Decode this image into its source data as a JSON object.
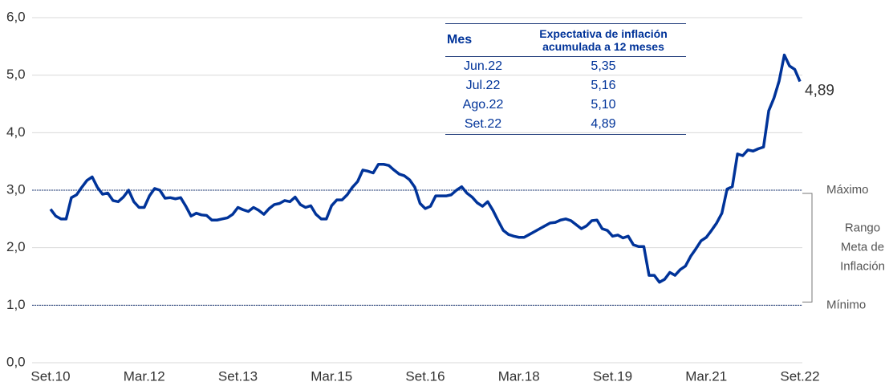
{
  "chart_data": {
    "type": "line",
    "categories": [
      "Set.10",
      null,
      null,
      null,
      null,
      null,
      null,
      null,
      null,
      null,
      null,
      null,
      null,
      null,
      null,
      null,
      null,
      null,
      "Mar.12",
      null,
      null,
      null,
      null,
      null,
      null,
      null,
      null,
      null,
      null,
      null,
      null,
      null,
      null,
      null,
      null,
      null,
      "Set.13",
      null,
      null,
      null,
      null,
      null,
      null,
      null,
      null,
      null,
      null,
      null,
      null,
      null,
      null,
      null,
      null,
      null,
      "Mar.15",
      null,
      null,
      null,
      null,
      null,
      null,
      null,
      null,
      null,
      null,
      null,
      null,
      null,
      null,
      null,
      null,
      null,
      "Set.16",
      null,
      null,
      null,
      null,
      null,
      null,
      null,
      null,
      null,
      null,
      null,
      null,
      null,
      null,
      null,
      null,
      null,
      "Mar.18",
      null,
      null,
      null,
      null,
      null,
      null,
      null,
      null,
      null,
      null,
      null,
      null,
      null,
      null,
      null,
      null,
      null,
      "Set.19",
      null,
      null,
      null,
      null,
      null,
      null,
      null,
      null,
      null,
      null,
      null,
      null,
      null,
      null,
      null,
      null,
      null,
      "Mar.21",
      null,
      null,
      null,
      null,
      null,
      null,
      null,
      null,
      null,
      null,
      null,
      null,
      null,
      null,
      null,
      null,
      null,
      "Set.22"
    ],
    "values": [
      2.67,
      2.55,
      2.5,
      2.5,
      2.87,
      2.92,
      3.05,
      3.17,
      3.23,
      3.05,
      2.93,
      2.95,
      2.82,
      2.8,
      2.88,
      3.0,
      2.8,
      2.7,
      2.7,
      2.9,
      3.03,
      3.0,
      2.86,
      2.87,
      2.85,
      2.87,
      2.72,
      2.55,
      2.6,
      2.57,
      2.56,
      2.48,
      2.48,
      2.5,
      2.52,
      2.58,
      2.7,
      2.66,
      2.63,
      2.7,
      2.65,
      2.58,
      2.68,
      2.75,
      2.77,
      2.82,
      2.8,
      2.88,
      2.75,
      2.7,
      2.73,
      2.58,
      2.5,
      2.5,
      2.73,
      2.83,
      2.83,
      2.92,
      3.05,
      3.15,
      3.35,
      3.33,
      3.3,
      3.45,
      3.45,
      3.43,
      3.35,
      3.28,
      3.25,
      3.18,
      3.05,
      2.77,
      2.68,
      2.72,
      2.9,
      2.9,
      2.9,
      2.92,
      3.0,
      3.06,
      2.95,
      2.88,
      2.78,
      2.72,
      2.8,
      2.65,
      2.47,
      2.3,
      2.23,
      2.2,
      2.18,
      2.18,
      2.23,
      2.28,
      2.33,
      2.38,
      2.43,
      2.44,
      2.48,
      2.5,
      2.47,
      2.4,
      2.33,
      2.38,
      2.47,
      2.48,
      2.33,
      2.3,
      2.2,
      2.22,
      2.17,
      2.2,
      2.05,
      2.02,
      2.02,
      1.52,
      1.52,
      1.4,
      1.45,
      1.57,
      1.52,
      1.62,
      1.68,
      1.85,
      1.98,
      2.12,
      2.18,
      2.3,
      2.43,
      2.6,
      3.02,
      3.06,
      3.63,
      3.6,
      3.7,
      3.68,
      3.72,
      3.75,
      4.38,
      4.6,
      4.9,
      5.35,
      5.16,
      5.1,
      4.89
    ],
    "value_labels": [
      null,
      null,
      null,
      null,
      null,
      null,
      null,
      null,
      null,
      null,
      null,
      null,
      null,
      null,
      null,
      null,
      null,
      null,
      null,
      null,
      null,
      null,
      null,
      null,
      null,
      null,
      null,
      null,
      null,
      null,
      null,
      null,
      null,
      null,
      null,
      null,
      null,
      null,
      null,
      null,
      null,
      null,
      null,
      null,
      null,
      null,
      null,
      null,
      null,
      null,
      null,
      null,
      null,
      null,
      null,
      null,
      null,
      null,
      null,
      null,
      null,
      null,
      null,
      null,
      null,
      null,
      null,
      null,
      null,
      null,
      null,
      null,
      null,
      null,
      null,
      null,
      null,
      null,
      null,
      null,
      null,
      null,
      null,
      null,
      null,
      null,
      null,
      null,
      null,
      null,
      null,
      null,
      null,
      null,
      null,
      null,
      null,
      null,
      null,
      null,
      null,
      null,
      null,
      null,
      null,
      null,
      null,
      null,
      null,
      null,
      null,
      null,
      null,
      null,
      null,
      null,
      null,
      null,
      null,
      null,
      null,
      null,
      null,
      null,
      null,
      null,
      null,
      null,
      null,
      null,
      null,
      null,
      null,
      null,
      null,
      null,
      null,
      null,
      null,
      null,
      null,
      null,
      null,
      null,
      "4,89"
    ],
    "color": "#003399",
    "ylim": [
      0,
      6
    ],
    "yticks": [
      {
        "value": 0,
        "label": "0,0"
      },
      {
        "value": 1,
        "label": "1,0"
      },
      {
        "value": 2,
        "label": "2,0"
      },
      {
        "value": 3,
        "label": "3,0"
      },
      {
        "value": 4,
        "label": "4,0"
      },
      {
        "value": 5,
        "label": "5,0"
      },
      {
        "value": 6,
        "label": "6,0"
      }
    ],
    "grid": true,
    "reference_lines": [
      {
        "value": 3,
        "label": "Máximo"
      },
      {
        "value": 1,
        "label": "Mínimo"
      }
    ],
    "band_label": [
      "Rango",
      "Meta de",
      "Inflación"
    ],
    "table": {
      "columns": [
        "Mes",
        "Expectativa de inflación acumulada a 12 meses"
      ],
      "rows": [
        [
          "Jun.22",
          "5,35"
        ],
        [
          "Jul.22",
          "5,16"
        ],
        [
          "Ago.22",
          "5,10"
        ],
        [
          "Set.22",
          "4,89"
        ]
      ]
    }
  }
}
